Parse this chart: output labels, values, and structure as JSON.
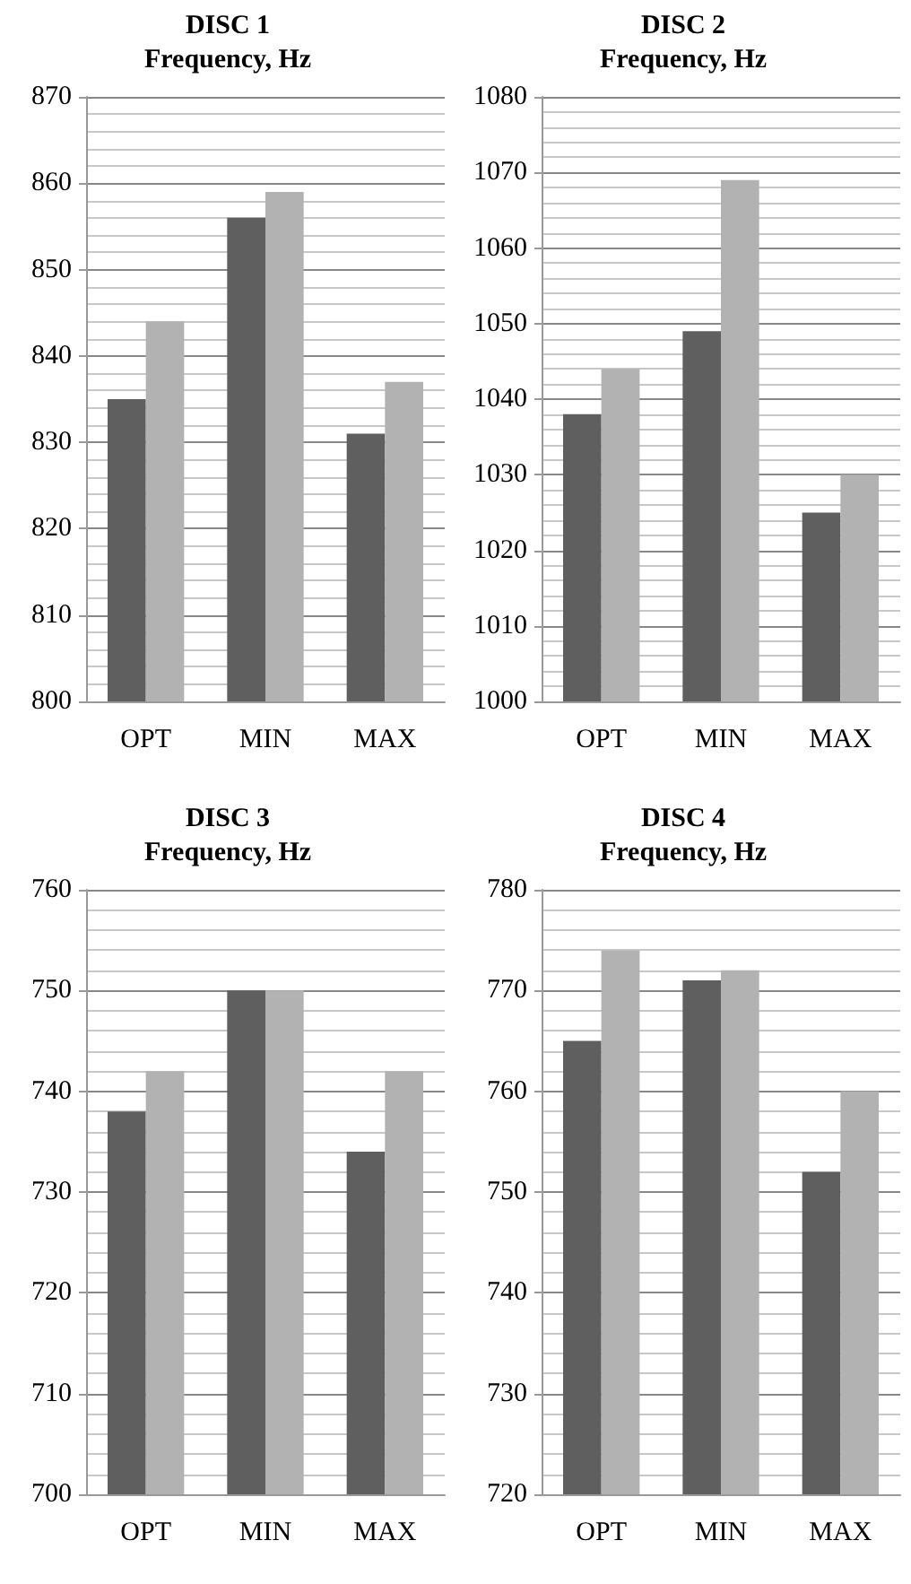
{
  "chart_data": [
    {
      "type": "bar",
      "title": "DISC 1",
      "subtitle": "Frequency, Hz",
      "categories": [
        "OPT",
        "MIN",
        "MAX"
      ],
      "series": [
        {
          "color": "#5f5f5f",
          "values": [
            835,
            856,
            831
          ]
        },
        {
          "color": "#b2b2b2",
          "values": [
            844,
            859,
            837
          ]
        }
      ],
      "ylim": [
        800,
        870
      ],
      "yticks": [
        800,
        810,
        820,
        830,
        840,
        850,
        860,
        870
      ],
      "grid": "y"
    },
    {
      "type": "bar",
      "title": "DISC 2",
      "subtitle": "Frequency, Hz",
      "categories": [
        "OPT",
        "MIN",
        "MAX"
      ],
      "series": [
        {
          "color": "#5f5f5f",
          "values": [
            1038,
            1049,
            1025
          ]
        },
        {
          "color": "#b2b2b2",
          "values": [
            1044,
            1069,
            1030
          ]
        }
      ],
      "ylim": [
        1000,
        1080
      ],
      "yticks": [
        1000,
        1010,
        1020,
        1030,
        1040,
        1050,
        1060,
        1070,
        1080
      ],
      "grid": "y"
    },
    {
      "type": "bar",
      "title": "DISC 3",
      "subtitle": "Frequency, Hz",
      "categories": [
        "OPT",
        "MIN",
        "MAX"
      ],
      "series": [
        {
          "color": "#5f5f5f",
          "values": [
            738,
            750,
            734
          ]
        },
        {
          "color": "#b2b2b2",
          "values": [
            742,
            750,
            742
          ]
        }
      ],
      "ylim": [
        700,
        760
      ],
      "yticks": [
        700,
        710,
        720,
        730,
        740,
        750,
        760
      ],
      "grid": "y"
    },
    {
      "type": "bar",
      "title": "DISC 4",
      "subtitle": "Frequency, Hz",
      "categories": [
        "OPT",
        "MIN",
        "MAX"
      ],
      "series": [
        {
          "color": "#5f5f5f",
          "values": [
            765,
            771,
            752
          ]
        },
        {
          "color": "#b2b2b2",
          "values": [
            774,
            772,
            760
          ]
        }
      ],
      "ylim": [
        720,
        780
      ],
      "yticks": [
        720,
        730,
        740,
        750,
        760,
        770,
        780
      ],
      "grid": "y"
    }
  ]
}
